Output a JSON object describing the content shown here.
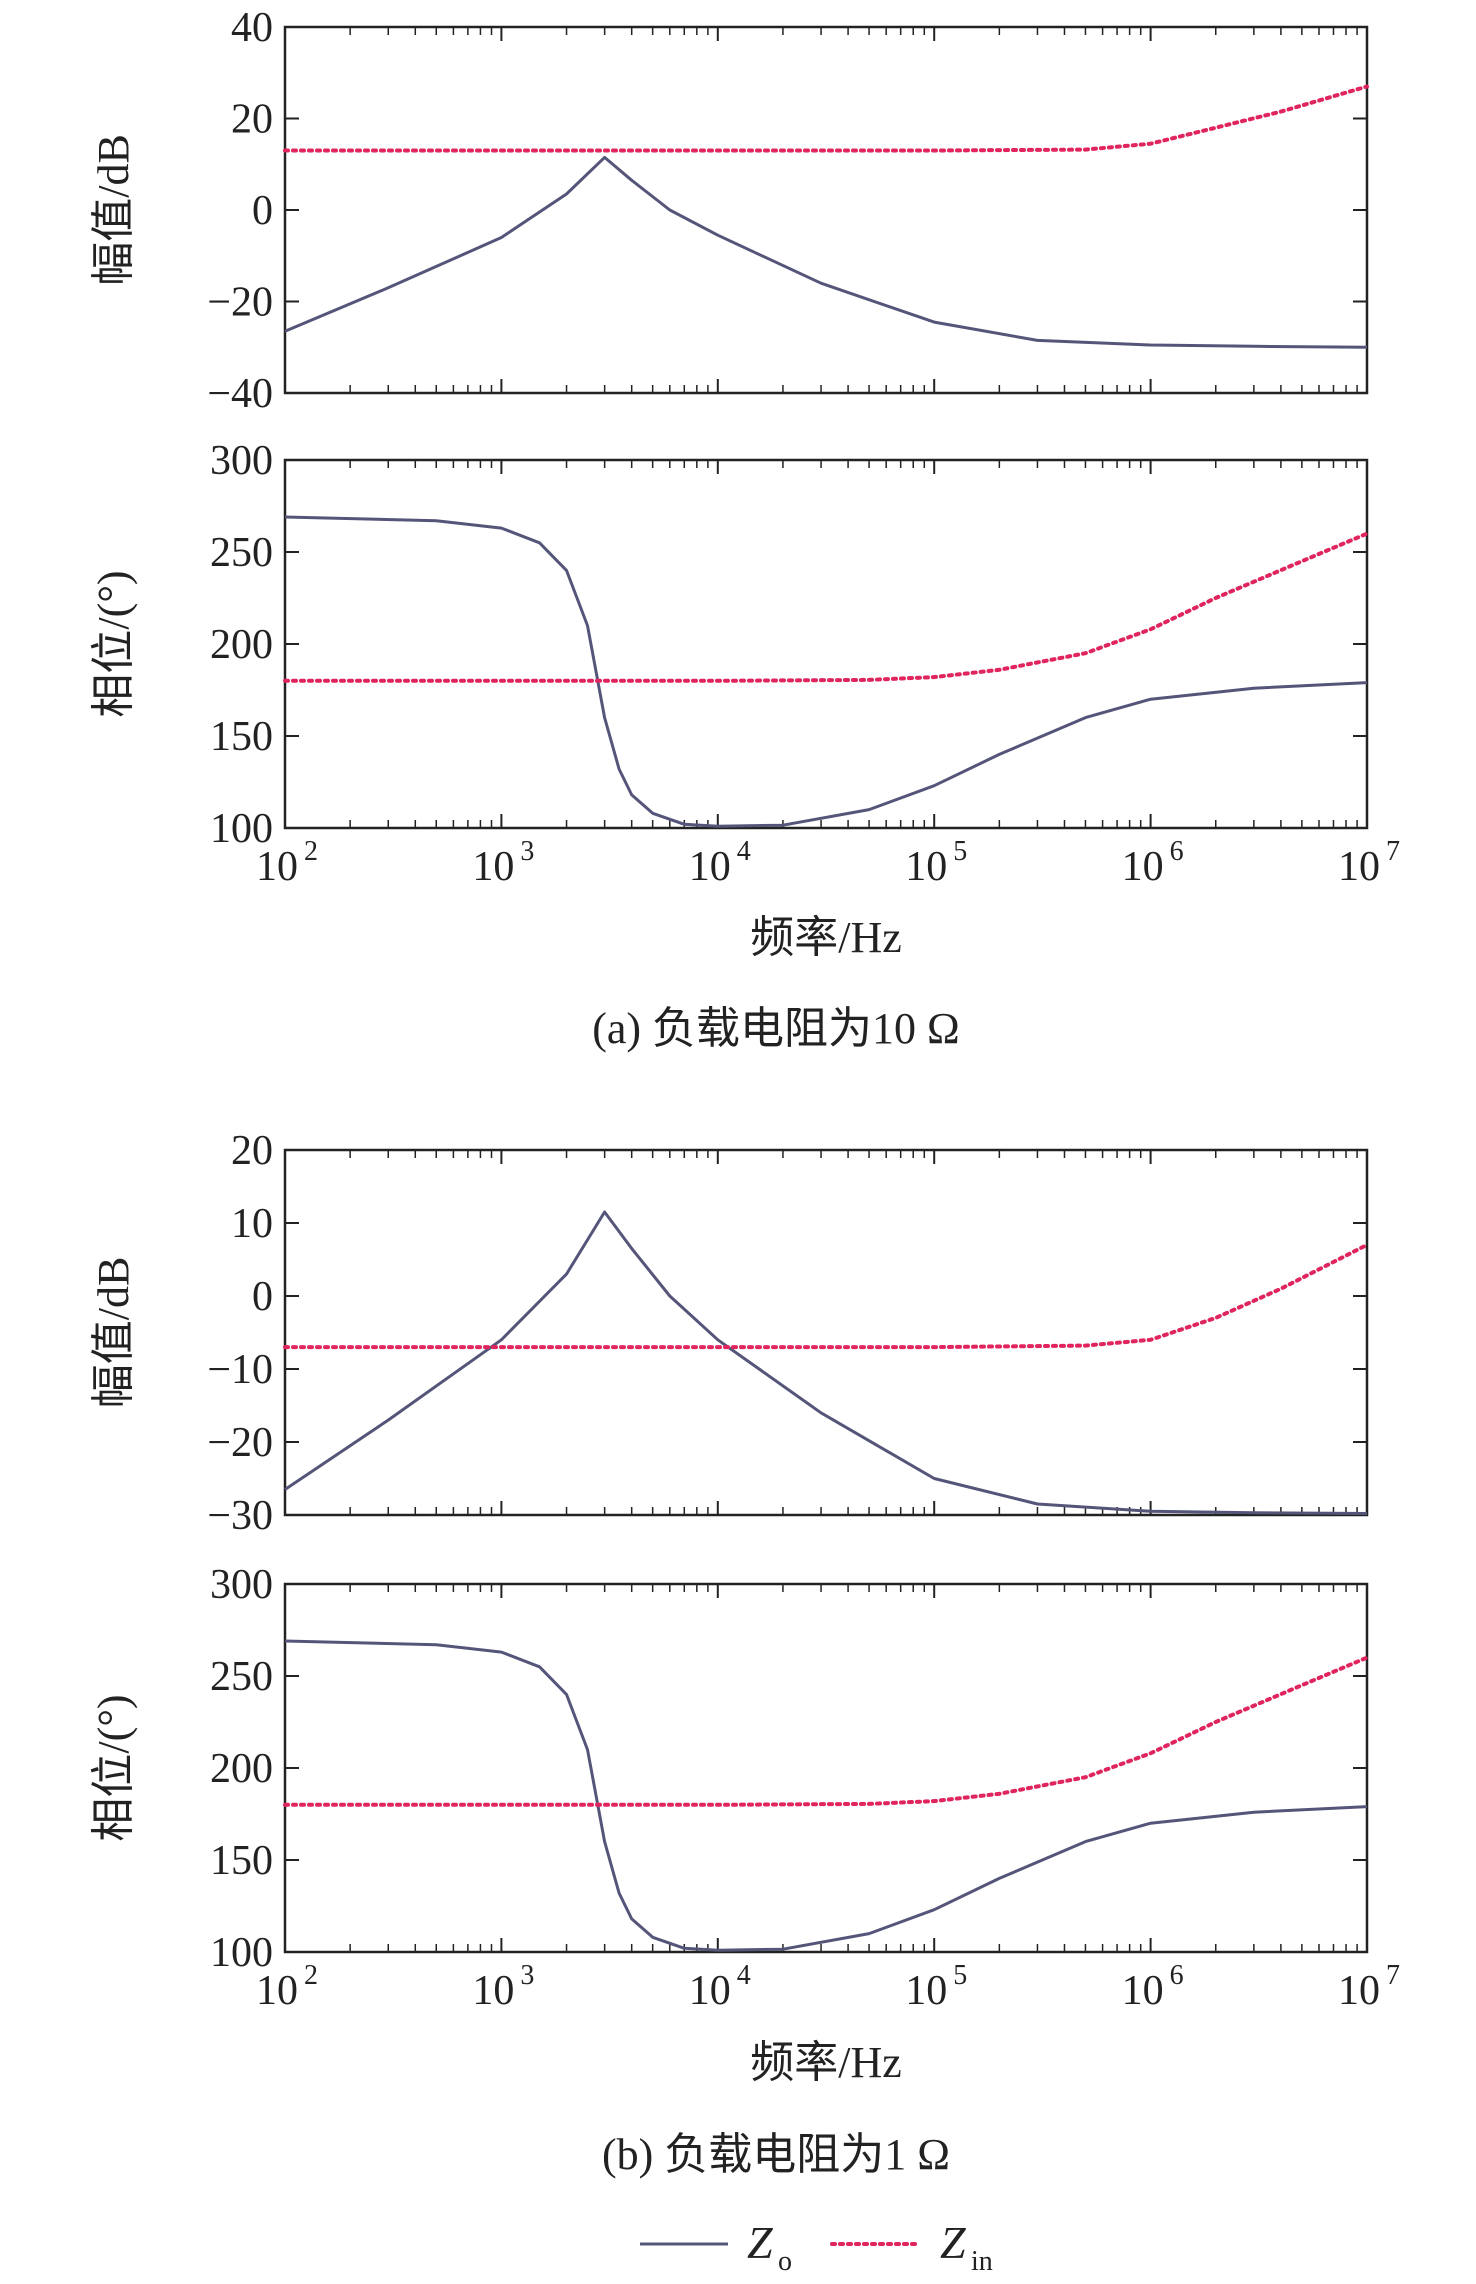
{
  "colors": {
    "zo": "#55557a",
    "zin": "#e0245e",
    "axis": "#222222"
  },
  "legend": {
    "zo_label": "Z",
    "zo_sub": "o",
    "zin_label": "Z",
    "zin_sub": "in"
  },
  "chart_data": [
    {
      "type": "line",
      "panel": "a-magnitude",
      "ylabel": "幅值/dB",
      "xscale": "log",
      "xlim": [
        100,
        10000000
      ],
      "ylim": [
        -40,
        40
      ],
      "yticks": [
        -40,
        -20,
        0,
        20,
        40
      ],
      "series": [
        {
          "name": "Zo",
          "x": [
            100,
            300,
            1000,
            2000,
            3000,
            4000,
            6000,
            10000,
            30000,
            100000,
            300000,
            1000000,
            3000000,
            10000000
          ],
          "y": [
            -26.5,
            -17,
            -6,
            3.5,
            11.5,
            6.5,
            0,
            -5.5,
            -16,
            -24.5,
            -28.5,
            -29.5,
            -29.8,
            -30
          ]
        },
        {
          "name": "Zin",
          "x": [
            100,
            1000,
            10000,
            100000,
            500000,
            1000000,
            2000000,
            4000000,
            10000000
          ],
          "y": [
            13,
            13,
            13,
            13,
            13.2,
            14.5,
            18,
            21.5,
            27
          ]
        }
      ]
    },
    {
      "type": "line",
      "panel": "a-phase",
      "ylabel": "相位/(°)",
      "xscale": "log",
      "xlim": [
        100,
        10000000
      ],
      "ylim": [
        100,
        300
      ],
      "yticks": [
        100,
        150,
        200,
        250,
        300
      ],
      "xtick_labels": [
        "10",
        "10",
        "10",
        "10",
        "10",
        "10"
      ],
      "xtick_exps": [
        "2",
        "3",
        "4",
        "5",
        "6",
        "7"
      ],
      "xlabel": "频率/Hz",
      "caption": "(a) 负载电阻为10 Ω",
      "series": [
        {
          "name": "Zo",
          "x": [
            100,
            500,
            1000,
            1500,
            2000,
            2500,
            3000,
            3500,
            4000,
            5000,
            7000,
            10000,
            20000,
            50000,
            100000,
            200000,
            500000,
            1000000,
            3000000,
            10000000
          ],
          "y": [
            269,
            267,
            263,
            255,
            240,
            210,
            160,
            132,
            118,
            108,
            102,
            101,
            101.5,
            110,
            123,
            140,
            160,
            170,
            176,
            179
          ]
        },
        {
          "name": "Zin",
          "x": [
            100,
            1000,
            10000,
            50000,
            100000,
            200000,
            500000,
            1000000,
            2000000,
            5000000,
            10000000
          ],
          "y": [
            180,
            180,
            180,
            180.5,
            182,
            186,
            195,
            208,
            225,
            245,
            260
          ]
        }
      ]
    },
    {
      "type": "line",
      "panel": "b-magnitude",
      "ylabel": "幅值/dB",
      "xscale": "log",
      "xlim": [
        100,
        10000000
      ],
      "ylim": [
        -30,
        20
      ],
      "yticks": [
        -30,
        -20,
        -10,
        0,
        10,
        20
      ],
      "series": [
        {
          "name": "Zo",
          "x": [
            100,
            300,
            1000,
            2000,
            3000,
            4000,
            6000,
            10000,
            30000,
            100000,
            300000,
            1000000,
            3000000,
            10000000
          ],
          "y": [
            -26.5,
            -17,
            -6,
            3,
            11.5,
            6.5,
            0,
            -6,
            -16,
            -25,
            -28.5,
            -29.5,
            -29.7,
            -29.8
          ]
        },
        {
          "name": "Zin",
          "x": [
            100,
            1000,
            10000,
            100000,
            500000,
            1000000,
            2000000,
            4000000,
            10000000
          ],
          "y": [
            -7,
            -7,
            -7,
            -7,
            -6.8,
            -6,
            -3,
            1,
            7
          ]
        }
      ]
    },
    {
      "type": "line",
      "panel": "b-phase",
      "ylabel": "相位/(°)",
      "xscale": "log",
      "xlim": [
        100,
        10000000
      ],
      "ylim": [
        100,
        300
      ],
      "yticks": [
        100,
        150,
        200,
        250,
        300
      ],
      "xtick_labels": [
        "10",
        "10",
        "10",
        "10",
        "10",
        "10"
      ],
      "xtick_exps": [
        "2",
        "3",
        "4",
        "5",
        "6",
        "7"
      ],
      "xlabel": "频率/Hz",
      "caption": "(b) 负载电阻为1 Ω",
      "series": [
        {
          "name": "Zo",
          "x": [
            100,
            500,
            1000,
            1500,
            2000,
            2500,
            3000,
            3500,
            4000,
            5000,
            7000,
            10000,
            20000,
            50000,
            100000,
            200000,
            500000,
            1000000,
            3000000,
            10000000
          ],
          "y": [
            269,
            267,
            263,
            255,
            240,
            210,
            160,
            132,
            118,
            108,
            102,
            101,
            101.5,
            110,
            123,
            140,
            160,
            170,
            176,
            179
          ]
        },
        {
          "name": "Zin",
          "x": [
            100,
            1000,
            10000,
            50000,
            100000,
            200000,
            500000,
            1000000,
            2000000,
            5000000,
            10000000
          ],
          "y": [
            180,
            180,
            180,
            180.5,
            182,
            186,
            195,
            208,
            225,
            245,
            260
          ]
        }
      ]
    }
  ]
}
